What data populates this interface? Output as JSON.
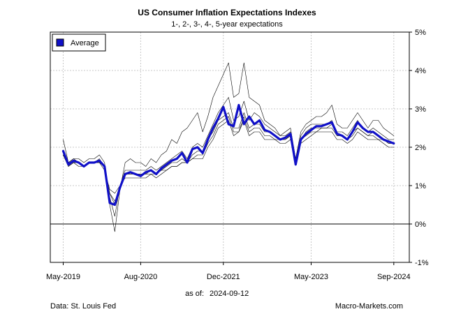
{
  "chart_data": {
    "type": "line",
    "title": "US Consumer Inflation Expectations Indexes",
    "subtitle": "1-, 2-, 3-, 4-, 5-year expectations",
    "xlabel": "",
    "ylabel": "",
    "ylim": [
      -1,
      5
    ],
    "x_ticks": [
      "May-2019",
      "Aug-2020",
      "Dec-2021",
      "May-2023",
      "Sep-2024"
    ],
    "y_ticks": [
      "5%",
      "4%",
      "3%",
      "2%",
      "1%",
      "0%",
      "-1%"
    ],
    "y_tick_values": [
      5,
      4,
      3,
      2,
      1,
      0,
      -1
    ],
    "x_tick_positions": [
      0,
      15,
      31,
      48,
      64
    ],
    "x_range": [
      -2.5,
      67
    ],
    "legend": {
      "position": "top-left",
      "entries": [
        {
          "name": "Average",
          "color": "#1010c8"
        }
      ]
    },
    "zero_line": 0,
    "grid": true,
    "series": [
      {
        "name": "1-year",
        "color": "#000000",
        "values": [
          2.2,
          1.6,
          1.7,
          1.7,
          1.6,
          1.7,
          1.7,
          1.8,
          1.6,
          0.5,
          -0.2,
          0.9,
          1.6,
          1.7,
          1.6,
          1.6,
          1.5,
          1.7,
          1.6,
          1.8,
          1.9,
          2.2,
          2.1,
          2.4,
          2.5,
          2.7,
          2.9,
          2.4,
          2.8,
          3.3,
          3.6,
          3.9,
          4.2,
          3.3,
          3.4,
          4.2,
          3.3,
          3.2,
          3.1,
          2.7,
          2.6,
          2.5,
          2.3,
          2.4,
          2.5,
          1.7,
          2.4,
          2.6,
          2.7,
          2.8,
          2.8,
          2.9,
          3.1,
          2.6,
          2.5,
          2.5,
          2.7,
          2.9,
          2.7,
          2.5,
          2.7,
          2.7,
          2.5,
          2.4,
          2.3
        ]
      },
      {
        "name": "2-year",
        "color": "#000000",
        "values": [
          1.9,
          1.6,
          1.7,
          1.6,
          1.5,
          1.6,
          1.6,
          1.7,
          1.5,
          0.7,
          0.2,
          1.0,
          1.4,
          1.4,
          1.4,
          1.4,
          1.4,
          1.5,
          1.4,
          1.5,
          1.6,
          1.7,
          1.8,
          1.9,
          1.7,
          2.0,
          2.1,
          2.0,
          2.3,
          2.6,
          2.9,
          3.1,
          3.3,
          2.7,
          2.8,
          3.2,
          2.7,
          2.9,
          2.8,
          2.6,
          2.5,
          2.4,
          2.3,
          2.3,
          2.4,
          1.7,
          2.3,
          2.5,
          2.6,
          2.6,
          2.6,
          2.6,
          2.7,
          2.4,
          2.4,
          2.3,
          2.5,
          2.7,
          2.5,
          2.4,
          2.5,
          2.4,
          2.3,
          2.2,
          2.2
        ]
      },
      {
        "name": "3-year",
        "color": "#000000",
        "values": [
          1.8,
          1.6,
          1.6,
          1.6,
          1.5,
          1.6,
          1.6,
          1.6,
          1.5,
          0.8,
          0.5,
          0.9,
          1.3,
          1.3,
          1.3,
          1.3,
          1.3,
          1.4,
          1.3,
          1.4,
          1.5,
          1.6,
          1.6,
          1.7,
          1.6,
          1.8,
          1.9,
          1.9,
          2.2,
          2.4,
          2.7,
          2.8,
          2.9,
          2.5,
          2.5,
          2.9,
          2.5,
          2.6,
          2.6,
          2.4,
          2.4,
          2.3,
          2.2,
          2.2,
          2.3,
          1.6,
          2.2,
          2.4,
          2.5,
          2.5,
          2.5,
          2.5,
          2.6,
          2.3,
          2.3,
          2.2,
          2.4,
          2.5,
          2.4,
          2.3,
          2.4,
          2.3,
          2.2,
          2.1,
          2.1
        ]
      },
      {
        "name": "4-year",
        "color": "#000000",
        "values": [
          1.8,
          1.5,
          1.6,
          1.6,
          1.5,
          1.6,
          1.6,
          1.6,
          1.5,
          0.8,
          0.6,
          0.9,
          1.3,
          1.3,
          1.3,
          1.3,
          1.3,
          1.3,
          1.3,
          1.4,
          1.4,
          1.5,
          1.5,
          1.6,
          1.6,
          1.7,
          1.8,
          1.8,
          2.1,
          2.3,
          2.6,
          2.7,
          2.8,
          2.4,
          2.4,
          2.8,
          2.4,
          2.5,
          2.5,
          2.3,
          2.3,
          2.2,
          2.2,
          2.2,
          2.3,
          1.6,
          2.2,
          2.3,
          2.4,
          2.4,
          2.5,
          2.5,
          2.5,
          2.3,
          2.3,
          2.2,
          2.3,
          2.5,
          2.4,
          2.3,
          2.3,
          2.2,
          2.2,
          2.1,
          2.1
        ]
      },
      {
        "name": "5-year",
        "color": "#000000",
        "values": [
          1.8,
          1.5,
          1.6,
          1.5,
          1.5,
          1.6,
          1.6,
          1.6,
          1.4,
          0.9,
          0.8,
          1.0,
          1.2,
          1.2,
          1.2,
          1.2,
          1.2,
          1.3,
          1.2,
          1.3,
          1.4,
          1.5,
          1.5,
          1.6,
          1.6,
          1.7,
          1.7,
          1.7,
          2.0,
          2.2,
          2.5,
          2.6,
          2.7,
          2.3,
          2.4,
          2.7,
          2.3,
          2.4,
          2.4,
          2.2,
          2.2,
          2.2,
          2.1,
          2.1,
          2.2,
          1.6,
          2.1,
          2.2,
          2.3,
          2.4,
          2.4,
          2.4,
          2.4,
          2.2,
          2.2,
          2.1,
          2.2,
          2.4,
          2.3,
          2.2,
          2.2,
          2.2,
          2.1,
          2.0,
          2.0
        ]
      },
      {
        "name": "Average",
        "color": "#1010c8",
        "values": [
          1.9,
          1.55,
          1.65,
          1.6,
          1.5,
          1.6,
          1.6,
          1.65,
          1.5,
          0.55,
          0.5,
          0.95,
          1.3,
          1.35,
          1.3,
          1.25,
          1.35,
          1.4,
          1.3,
          1.45,
          1.55,
          1.65,
          1.7,
          1.85,
          1.6,
          1.95,
          2.0,
          1.85,
          2.2,
          2.5,
          2.75,
          3.05,
          2.6,
          2.55,
          3.1,
          2.6,
          2.8,
          2.6,
          2.7,
          2.45,
          2.4,
          2.3,
          2.2,
          2.25,
          2.35,
          1.55,
          2.2,
          2.35,
          2.45,
          2.55,
          2.55,
          2.6,
          2.65,
          2.35,
          2.3,
          2.2,
          2.4,
          2.65,
          2.5,
          2.4,
          2.4,
          2.3,
          2.2,
          2.15,
          2.1
        ]
      }
    ]
  },
  "footer": {
    "as_of_label": "as of:",
    "as_of_date": "2024-09-12",
    "source": "Data: St. Louis Fed",
    "brand": "Macro-Markets.com"
  }
}
